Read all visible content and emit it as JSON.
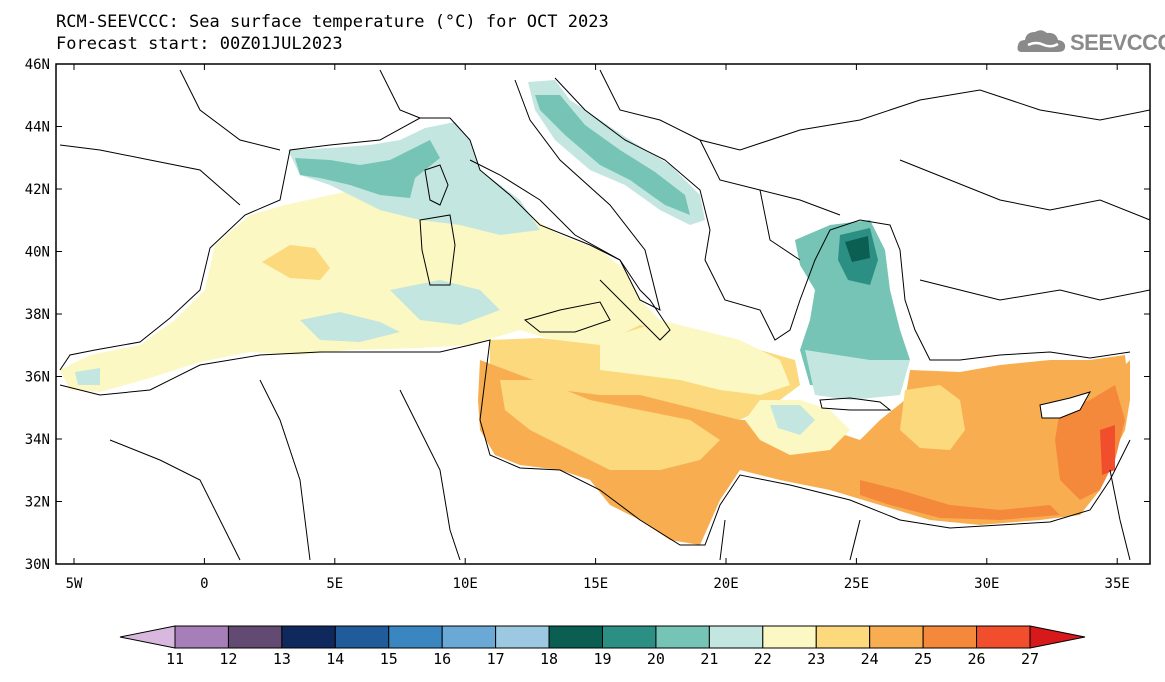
{
  "header": {
    "title_line1": "RCM-SEEVCCC: Sea surface temperature (°C) for OCT 2023",
    "title_line2": "Forecast start: 00Z01JUL2023"
  },
  "logo": {
    "text": "SEEVCCC",
    "icon": "cloud-logo-icon",
    "color": "#8a8a8a"
  },
  "map": {
    "lon_ticks": [
      "5W",
      "0",
      "5E",
      "10E",
      "15E",
      "20E",
      "25E",
      "30E",
      "35E"
    ],
    "lat_ticks": [
      "30N",
      "32N",
      "34N",
      "36N",
      "38N",
      "40N",
      "42N",
      "44N",
      "46N"
    ]
  },
  "colorbar": {
    "labels": [
      "11",
      "12",
      "13",
      "14",
      "15",
      "16",
      "17",
      "18",
      "19",
      "20",
      "21",
      "22",
      "23",
      "24",
      "25",
      "26",
      "27"
    ],
    "colors": [
      "#d9b8e0",
      "#a67fb8",
      "#634a73",
      "#10295c",
      "#1f5c99",
      "#3a86c0",
      "#6aa8d6",
      "#9cc8e2",
      "#0a5e52",
      "#2c8f84",
      "#75c4b5",
      "#c4e6e0",
      "#fbf8c4",
      "#fbd97c",
      "#f8ae50",
      "#f5893b",
      "#f04e2c",
      "#d7191c"
    ]
  }
}
